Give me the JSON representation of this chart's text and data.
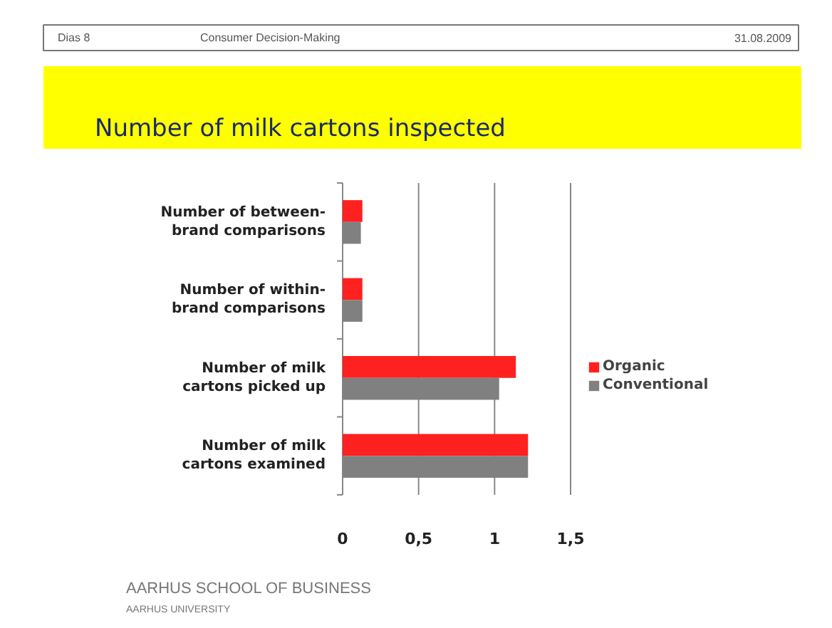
{
  "chart_data": {
    "type": "bar",
    "orientation": "horizontal",
    "title": "Number of milk cartons inspected",
    "categories": [
      "Number of between-brand comparisons",
      "Number of within-brand comparisons",
      "Number of milk cartons picked up",
      "Number of milk cartons examined"
    ],
    "series": [
      {
        "name": "Organic",
        "color": "#ff2020",
        "values": [
          0.13,
          0.13,
          1.14,
          1.22
        ]
      },
      {
        "name": "Conventional",
        "color": "#808080",
        "values": [
          0.12,
          0.13,
          1.03,
          1.22
        ]
      }
    ],
    "xlim": [
      0,
      1.5
    ],
    "xticks": [
      {
        "value": 0,
        "label": "0"
      },
      {
        "value": 0.5,
        "label": "0,5"
      },
      {
        "value": 1,
        "label": "1"
      },
      {
        "value": 1.5,
        "label": "1,5"
      }
    ],
    "grid": "x",
    "legend": "right",
    "annotations": [
      "Dias 8",
      "Consumer Decision-Making",
      "31.08.2009",
      "AARHUS SCHOOL OF BUSINESS",
      "AARHUS UNIVERSITY"
    ]
  }
}
